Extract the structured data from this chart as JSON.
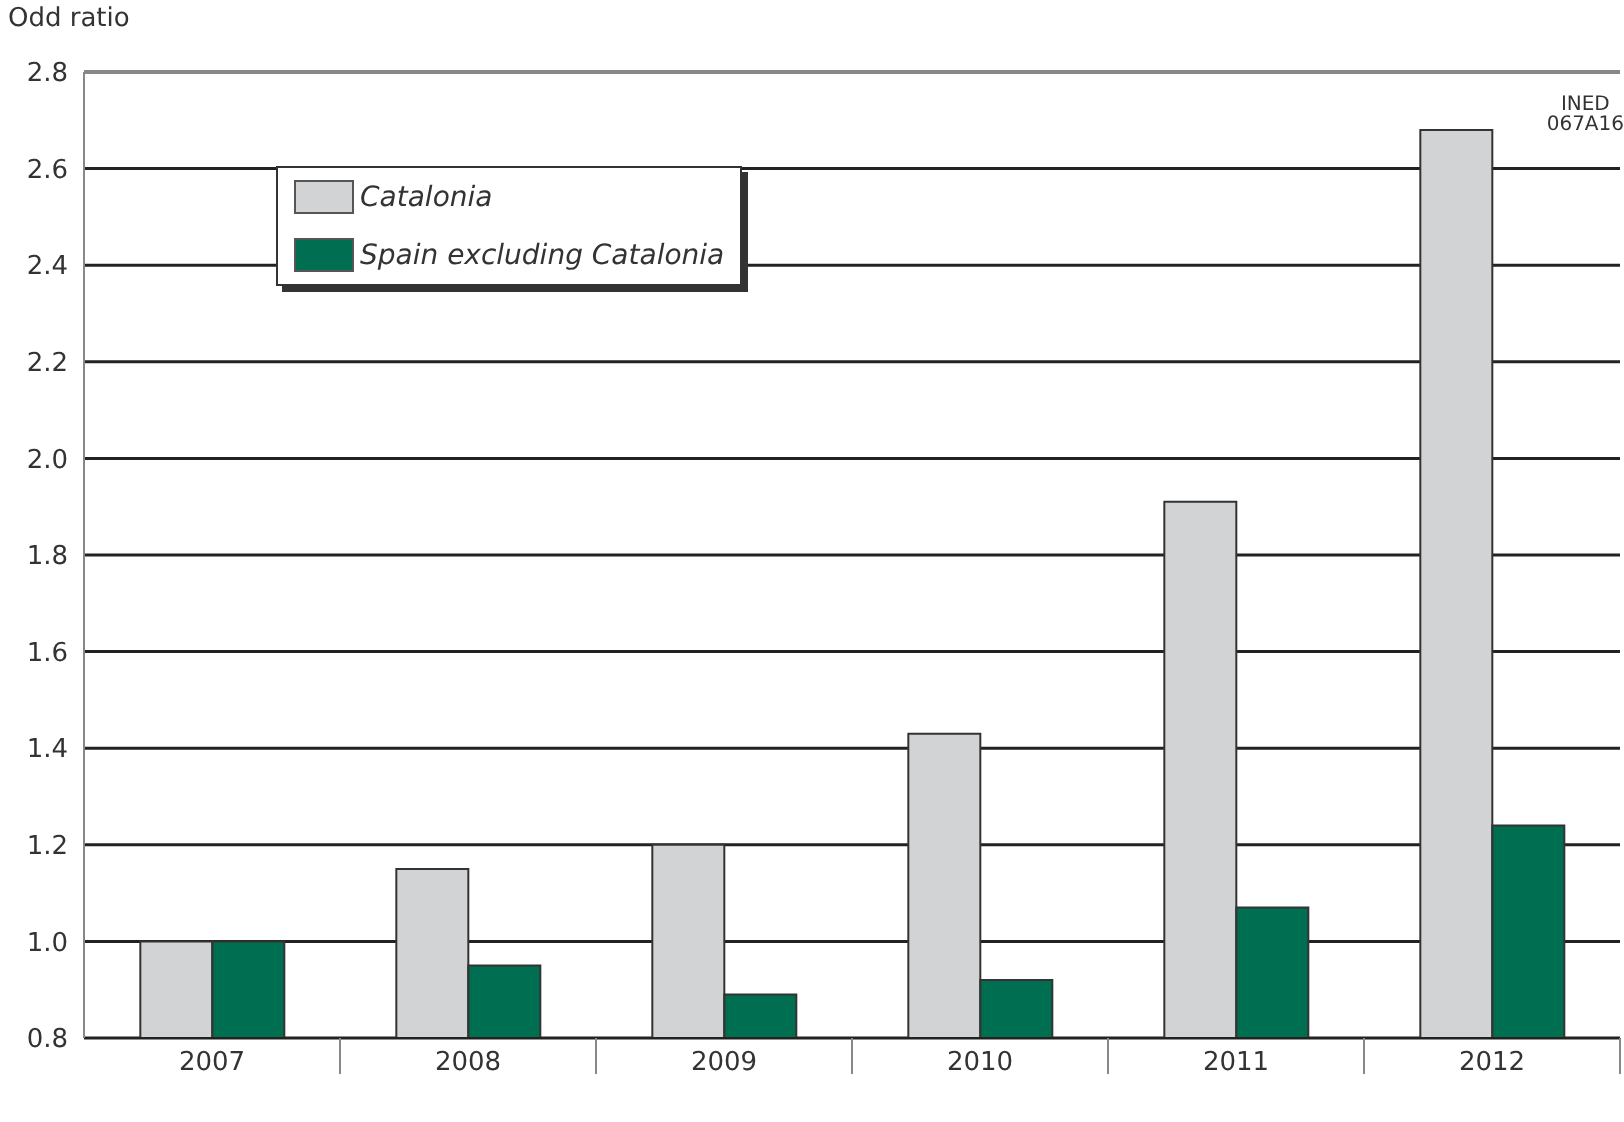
{
  "chart_data": {
    "type": "bar",
    "ylabel": "Odd ratio",
    "categories": [
      "2007",
      "2008",
      "2009",
      "2010",
      "2011",
      "2012"
    ],
    "series": [
      {
        "name": "Catalonia",
        "color": "#d1d3d4",
        "values": [
          1.0,
          1.15,
          1.2,
          1.43,
          1.91,
          2.68
        ]
      },
      {
        "name": "Spain excluding Catalonia",
        "color": "#006f51",
        "values": [
          1.0,
          0.95,
          0.89,
          0.92,
          1.07,
          1.24
        ]
      }
    ],
    "ylim": [
      0.8,
      2.8
    ],
    "yticks": [
      0.8,
      {
        "value": 1,
        "label": "1.0"
      },
      1.2,
      1.4,
      1.6,
      1.8,
      {
        "value": 2,
        "label": "2.0"
      },
      2.2,
      2.4,
      2.6,
      2.8
    ],
    "grid": "y",
    "legend": "top left",
    "annotations": [
      "INED",
      "067A16"
    ]
  }
}
